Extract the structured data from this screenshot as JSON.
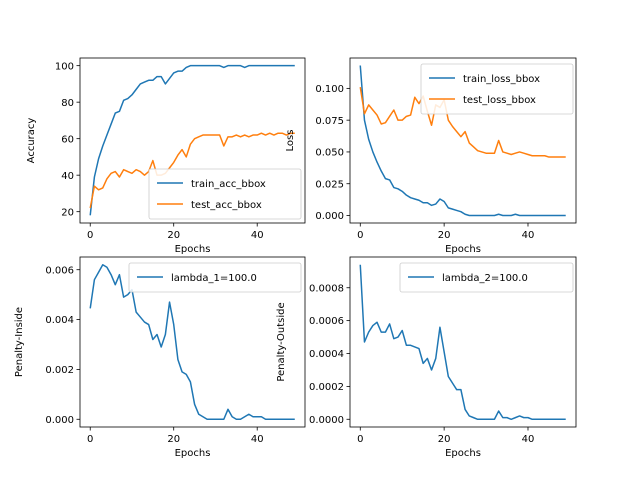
{
  "colors": {
    "blue": "#1f77b4",
    "orange": "#ff7f0e"
  },
  "chart_data": [
    {
      "type": "line",
      "xlabel": "Epochs",
      "ylabel": "Accuracy",
      "xlim": [
        -2.45,
        51.45
      ],
      "ylim": [
        13.8,
        104.2
      ],
      "xticks": [
        0,
        20,
        40
      ],
      "yticks": [
        20,
        40,
        60,
        80,
        100
      ],
      "legend": "bottom-right",
      "series": [
        {
          "name": "train_acc_bbox",
          "color": "#1f77b4",
          "x": [
            0,
            1,
            2,
            3,
            4,
            5,
            6,
            7,
            8,
            9,
            10,
            11,
            12,
            13,
            14,
            15,
            16,
            17,
            18,
            19,
            20,
            21,
            22,
            23,
            24,
            25,
            26,
            27,
            28,
            29,
            30,
            31,
            32,
            33,
            34,
            35,
            36,
            37,
            38,
            39,
            40,
            41,
            42,
            43,
            44,
            45,
            46,
            47,
            48,
            49
          ],
          "y": [
            18,
            39,
            49,
            56,
            62,
            68,
            74,
            75,
            81,
            82,
            84,
            87,
            90,
            91,
            92,
            92,
            94,
            94,
            90,
            93,
            96,
            97,
            97,
            99,
            100,
            100,
            100,
            100,
            100,
            100,
            100,
            100,
            99,
            100,
            100,
            100,
            100,
            99,
            100,
            100,
            100,
            100,
            100,
            100,
            100,
            100,
            100,
            100,
            100,
            100
          ]
        },
        {
          "name": "test_acc_bbox",
          "color": "#ff7f0e",
          "x": [
            0,
            1,
            2,
            3,
            4,
            5,
            6,
            7,
            8,
            9,
            10,
            11,
            12,
            13,
            14,
            15,
            16,
            17,
            18,
            19,
            20,
            21,
            22,
            23,
            24,
            25,
            26,
            27,
            28,
            29,
            30,
            31,
            32,
            33,
            34,
            35,
            36,
            37,
            38,
            39,
            40,
            41,
            42,
            43,
            44,
            45,
            46,
            47,
            48,
            49
          ],
          "y": [
            22,
            34,
            32,
            33,
            38,
            41,
            42,
            39,
            43,
            42,
            41,
            43,
            42,
            40,
            42,
            48,
            40,
            40,
            41,
            44,
            47,
            51,
            54,
            50,
            57,
            60,
            61,
            62,
            62,
            62,
            62,
            62,
            56,
            61,
            61,
            62,
            61,
            62,
            61,
            62,
            62,
            63,
            62,
            63,
            62,
            63,
            63,
            62,
            63,
            63
          ]
        }
      ]
    },
    {
      "type": "line",
      "xlabel": "Epochs",
      "ylabel": "Loss",
      "xlim": [
        -2.45,
        51.45
      ],
      "ylim": [
        -0.0059,
        0.1239
      ],
      "xticks": [
        0,
        20,
        40
      ],
      "yticks": [
        0.0,
        0.025,
        0.05,
        0.075,
        0.1
      ],
      "ytick_labels": [
        "0.000",
        "0.025",
        "0.050",
        "0.075",
        "0.100"
      ],
      "legend": "top-right",
      "series": [
        {
          "name": "train_loss_bbox",
          "color": "#1f77b4",
          "x": [
            0,
            1,
            2,
            3,
            4,
            5,
            6,
            7,
            8,
            9,
            10,
            11,
            12,
            13,
            14,
            15,
            16,
            17,
            18,
            19,
            20,
            21,
            22,
            23,
            24,
            25,
            26,
            27,
            28,
            29,
            30,
            31,
            32,
            33,
            34,
            35,
            36,
            37,
            38,
            39,
            40,
            41,
            42,
            43,
            44,
            45,
            46,
            47,
            48,
            49
          ],
          "y": [
            0.118,
            0.075,
            0.06,
            0.05,
            0.042,
            0.035,
            0.029,
            0.028,
            0.022,
            0.021,
            0.019,
            0.016,
            0.014,
            0.013,
            0.012,
            0.01,
            0.01,
            0.008,
            0.009,
            0.013,
            0.011,
            0.006,
            0.005,
            0.004,
            0.003,
            0.001,
            0.0,
            0.0,
            0.0,
            0.0,
            0.0,
            0.0,
            0.0,
            0.001,
            0.0,
            0.0,
            0.0,
            0.001,
            0.0,
            0.0,
            0.0,
            0.0,
            0.0,
            0.0,
            0.0,
            0.0,
            0.0,
            0.0,
            0.0,
            0.0
          ]
        },
        {
          "name": "test_loss_bbox",
          "color": "#ff7f0e",
          "x": [
            0,
            1,
            2,
            3,
            4,
            5,
            6,
            7,
            8,
            9,
            10,
            11,
            12,
            13,
            14,
            15,
            16,
            17,
            18,
            19,
            20,
            21,
            22,
            23,
            24,
            25,
            26,
            27,
            28,
            29,
            30,
            31,
            32,
            33,
            34,
            35,
            36,
            37,
            38,
            39,
            40,
            41,
            42,
            43,
            44,
            45,
            46,
            47,
            48,
            49
          ],
          "y": [
            0.101,
            0.08,
            0.087,
            0.083,
            0.079,
            0.072,
            0.073,
            0.078,
            0.083,
            0.075,
            0.075,
            0.078,
            0.079,
            0.093,
            0.088,
            0.094,
            0.082,
            0.071,
            0.087,
            0.085,
            0.091,
            0.075,
            0.07,
            0.066,
            0.062,
            0.066,
            0.057,
            0.054,
            0.051,
            0.05,
            0.049,
            0.049,
            0.049,
            0.059,
            0.05,
            0.049,
            0.048,
            0.049,
            0.05,
            0.049,
            0.048,
            0.047,
            0.047,
            0.047,
            0.047,
            0.046,
            0.046,
            0.046,
            0.046,
            0.046
          ]
        }
      ]
    },
    {
      "type": "line",
      "xlabel": "Epochs",
      "ylabel": "Penalty-Inside",
      "xlim": [
        -2.45,
        51.45
      ],
      "ylim": [
        -0.00031,
        0.00651
      ],
      "xticks": [
        0,
        20,
        40
      ],
      "yticks": [
        0.0,
        0.002,
        0.004,
        0.006
      ],
      "ytick_labels": [
        "0.000",
        "0.002",
        "0.004",
        "0.006"
      ],
      "legend": "top-right",
      "series": [
        {
          "name": "lambda_1=100.0",
          "color": "#1f77b4",
          "x": [
            0,
            1,
            2,
            3,
            4,
            5,
            6,
            7,
            8,
            9,
            10,
            11,
            12,
            13,
            14,
            15,
            16,
            17,
            18,
            19,
            20,
            21,
            22,
            23,
            24,
            25,
            26,
            27,
            28,
            29,
            30,
            31,
            32,
            33,
            34,
            35,
            36,
            37,
            38,
            39,
            40,
            41,
            42,
            43,
            44,
            45,
            46,
            47,
            48,
            49
          ],
          "y": [
            0.00445,
            0.0056,
            0.0059,
            0.0062,
            0.0061,
            0.0058,
            0.0054,
            0.0058,
            0.0049,
            0.005,
            0.0052,
            0.0043,
            0.0041,
            0.0039,
            0.0038,
            0.0032,
            0.0034,
            0.0029,
            0.0034,
            0.0047,
            0.0038,
            0.0024,
            0.0019,
            0.0018,
            0.0015,
            0.0006,
            0.0002,
            0.0001,
            0.0,
            0.0,
            0.0,
            0.0,
            0.0,
            0.0004,
            0.0001,
            0.0,
            0.0,
            0.0001,
            0.0002,
            0.0001,
            0.0001,
            0.0001,
            0.0,
            0.0,
            0.0,
            0.0,
            0.0,
            0.0,
            0.0,
            0.0
          ]
        }
      ]
    },
    {
      "type": "line",
      "xlabel": "Epochs",
      "ylabel": "Penalty-Outside",
      "xlim": [
        -2.45,
        51.45
      ],
      "ylim": [
        -4.7e-05,
        0.000987
      ],
      "xticks": [
        0,
        20,
        40
      ],
      "yticks": [
        0.0,
        0.0002,
        0.0004,
        0.0006,
        0.0008
      ],
      "ytick_labels": [
        "0.0000",
        "0.0002",
        "0.0004",
        "0.0006",
        "0.0008"
      ],
      "legend": "top-right",
      "series": [
        {
          "name": "lambda_2=100.0",
          "color": "#1f77b4",
          "x": [
            0,
            1,
            2,
            3,
            4,
            5,
            6,
            7,
            8,
            9,
            10,
            11,
            12,
            13,
            14,
            15,
            16,
            17,
            18,
            19,
            20,
            21,
            22,
            23,
            24,
            25,
            26,
            27,
            28,
            29,
            30,
            31,
            32,
            33,
            34,
            35,
            36,
            37,
            38,
            39,
            40,
            41,
            42,
            43,
            44,
            45,
            46,
            47,
            48,
            49
          ],
          "y": [
            0.00094,
            0.00047,
            0.00053,
            0.00057,
            0.00059,
            0.00053,
            0.00053,
            0.00058,
            0.00049,
            0.0005,
            0.00054,
            0.00045,
            0.00045,
            0.00044,
            0.00043,
            0.00034,
            0.00037,
            0.0003,
            0.00037,
            0.00056,
            0.00041,
            0.00026,
            0.00022,
            0.00018,
            0.00018,
            6e-05,
            2e-05,
            1e-05,
            0.0,
            0.0,
            0.0,
            0.0,
            0.0,
            5e-05,
            1e-05,
            1e-05,
            0.0,
            1e-05,
            2e-05,
            1e-05,
            1e-05,
            0.0,
            0.0,
            0.0,
            0.0,
            0.0,
            0.0,
            0.0,
            0.0,
            0.0
          ]
        }
      ]
    }
  ]
}
